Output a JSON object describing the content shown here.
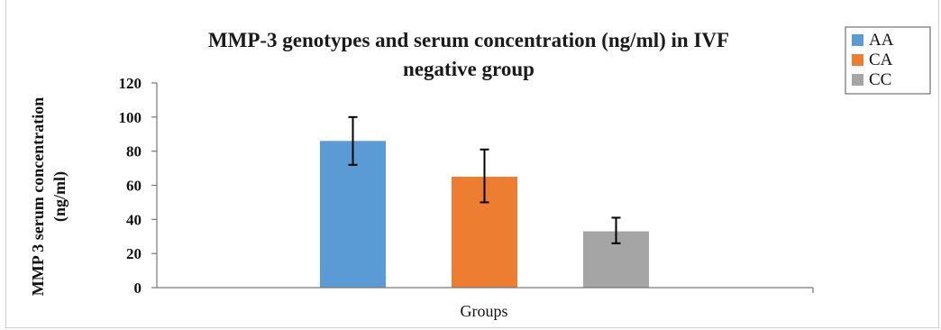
{
  "chart_data": {
    "type": "bar",
    "title_lines": [
      "MMP-3 genotypes and serum concentration (ng/ml) in IVF",
      "negative group"
    ],
    "xlabel": "Groups",
    "ylabel_lines": [
      "MMP 3 serum concentration",
      "(ng/ml)"
    ],
    "ylim": [
      0,
      120
    ],
    "yticks": [
      0,
      20,
      40,
      60,
      80,
      100,
      120
    ],
    "grid": false,
    "legend_position": "top-right",
    "series": [
      {
        "name": "AA",
        "value": 86,
        "error_low": 72,
        "error_high": 100,
        "color": "#5b9bd5"
      },
      {
        "name": "CA",
        "value": 65,
        "error_low": 50,
        "error_high": 81,
        "color": "#ed7d31"
      },
      {
        "name": "CC",
        "value": 33,
        "error_low": 26,
        "error_high": 41,
        "color": "#a5a5a5"
      }
    ]
  }
}
